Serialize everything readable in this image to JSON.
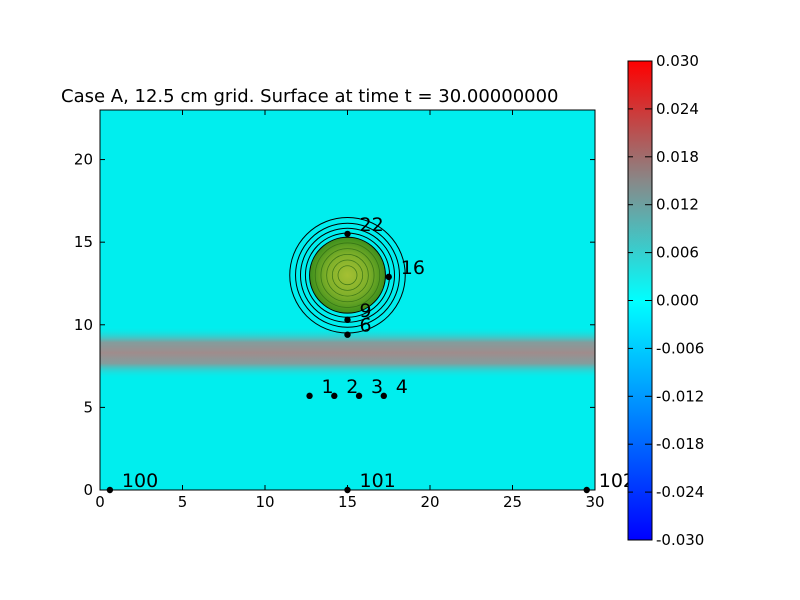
{
  "chart_data": {
    "type": "heatmap",
    "title": "Case A, 12.5 cm grid. Surface at time t =    30.00000000",
    "xlabel": "",
    "ylabel": "",
    "xlim": [
      0,
      30
    ],
    "ylim": [
      0,
      23
    ],
    "x_ticks": [
      0,
      5,
      10,
      15,
      20,
      25,
      30
    ],
    "y_ticks": [
      0,
      5,
      10,
      15,
      20
    ],
    "colorbar": {
      "min": -0.03,
      "max": 0.03,
      "ticks": [
        "0.030",
        "0.024",
        "0.018",
        "0.012",
        "0.006",
        "0.000",
        "-0.006",
        "-0.012",
        "-0.018",
        "-0.024",
        "-0.030"
      ],
      "colors": {
        "low": "#0000ff",
        "mid_low": "#00ffff",
        "mid_high": "#888888",
        "high": "#ff0000"
      }
    },
    "field": {
      "background_value": 0.003,
      "band": {
        "y_center": 8.3,
        "half_width": 1.6,
        "value": 0.016
      }
    },
    "island": {
      "center": [
        15.0,
        13.0
      ],
      "land_radius": 2.3,
      "contour_radii": [
        2.55,
        2.85,
        3.15,
        3.5
      ],
      "land_colors": {
        "outer": "#2e8b1a",
        "inner": "#8fbc2a"
      }
    },
    "gauges": [
      {
        "label": "1",
        "x": 12.7,
        "y": 5.7
      },
      {
        "label": "2",
        "x": 14.2,
        "y": 5.7
      },
      {
        "label": "3",
        "x": 15.7,
        "y": 5.7
      },
      {
        "label": "4",
        "x": 17.2,
        "y": 5.7
      },
      {
        "label": "6",
        "x": 15.0,
        "y": 9.4
      },
      {
        "label": "9",
        "x": 15.0,
        "y": 10.3
      },
      {
        "label": "16",
        "x": 17.5,
        "y": 12.9
      },
      {
        "label": "22",
        "x": 15.0,
        "y": 15.5
      },
      {
        "label": "100",
        "x": 0.6,
        "y": 0.0
      },
      {
        "label": "101",
        "x": 15.0,
        "y": 0.0
      },
      {
        "label": "102",
        "x": 29.5,
        "y": 0.0
      }
    ]
  }
}
